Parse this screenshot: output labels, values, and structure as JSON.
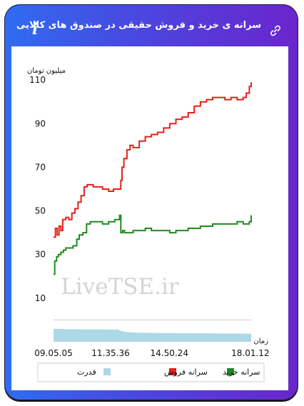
{
  "header": {
    "title": "سرانه ی خرید و فروش حقیقی در صندوق های کالایی",
    "info_icon": "info-icon",
    "link_icon": "link-icon"
  },
  "colors": {
    "frame_start": "#2f6cf2",
    "frame_end": "#6a25cc",
    "sell": "#e8201a",
    "buy": "#1f8a1f",
    "power": "#add8e6"
  },
  "watermark": "LiveTSE.ir",
  "chart_data": {
    "type": "line",
    "ylabel": "میلیون تومان",
    "xlabel": "زمان",
    "y_ticks": [
      10,
      30,
      50,
      70,
      90,
      110
    ],
    "y_tick_labels": [
      "10",
      "30",
      "50",
      "70",
      "90",
      "110"
    ],
    "ylim": [
      -10,
      112
    ],
    "x_ticks": [
      0,
      9331,
      18919,
      32167
    ],
    "x_tick_labels": [
      "09.05.05",
      "11.35.36",
      "14.50.24",
      "18.01.12"
    ],
    "xlim": [
      0,
      33000
    ],
    "grid": false,
    "reference_line": 0,
    "legend": {
      "position": "bottom"
    },
    "series": [
      {
        "name": "سرانه فروش",
        "color": "#e8201a",
        "x": [
          0,
          300,
          600,
          900,
          1200,
          1500,
          2000,
          2500,
          3000,
          3500,
          4000,
          4500,
          5000,
          5500,
          6000,
          6500,
          7000,
          8000,
          9000,
          9800,
          10400,
          11000,
          11200,
          11500,
          12000,
          12500,
          13000,
          14000,
          15000,
          16000,
          17000,
          18000,
          19000,
          20000,
          21000,
          22000,
          23000,
          24000,
          25000,
          26000,
          27000,
          28000,
          29000,
          30000,
          31000,
          31500,
          32000,
          32300
        ],
        "values": [
          38,
          42,
          39,
          43,
          41,
          46,
          47,
          46,
          49,
          51,
          54,
          57,
          61,
          62,
          62,
          61,
          61,
          60,
          59,
          60,
          60,
          64,
          70,
          74,
          78,
          80,
          79,
          82,
          84,
          85,
          86,
          88,
          90,
          92,
          93,
          95,
          98,
          100,
          101,
          102,
          102,
          101,
          102,
          101,
          102,
          104,
          107,
          109
        ]
      },
      {
        "name": "سرانه خرید",
        "color": "#1f8a1f",
        "x": [
          0,
          200,
          500,
          800,
          1200,
          1600,
          2000,
          2600,
          3200,
          3800,
          4200,
          4800,
          5400,
          6000,
          7000,
          8000,
          9000,
          10000,
          10500,
          10800,
          11000,
          11300,
          11600,
          12000,
          13000,
          14000,
          15000,
          16000,
          17000,
          18000,
          19000,
          20000,
          21000,
          22000,
          23000,
          24000,
          25000,
          26000,
          27000,
          28000,
          29000,
          30000,
          31000,
          31700,
          32000,
          32300
        ],
        "values": [
          21,
          27,
          29,
          30,
          31,
          32,
          33,
          33,
          34,
          37,
          39,
          40,
          44,
          45,
          45,
          44,
          45,
          46,
          46,
          48,
          40,
          41,
          40,
          40,
          41,
          41,
          42,
          41,
          41,
          41,
          40,
          41,
          41,
          42,
          42,
          43,
          43,
          44,
          44,
          44,
          44,
          45,
          44,
          44,
          45,
          48
        ]
      },
      {
        "name": "قدرت",
        "color": "#add8e6",
        "type": "area",
        "x": [
          0,
          2000,
          5000,
          8000,
          10000,
          10500,
          11000,
          12000,
          14000,
          16000,
          18000,
          20000,
          22000,
          24000,
          26000,
          28000,
          30000,
          32300
        ],
        "values": [
          -4.0,
          -4.2,
          -4.3,
          -4.3,
          -4.4,
          -4.3,
          -5.0,
          -5.6,
          -5.8,
          -5.9,
          -6.0,
          -6.0,
          -6.1,
          -6.1,
          -6.1,
          -6.2,
          -6.2,
          -6.3
        ]
      }
    ]
  }
}
